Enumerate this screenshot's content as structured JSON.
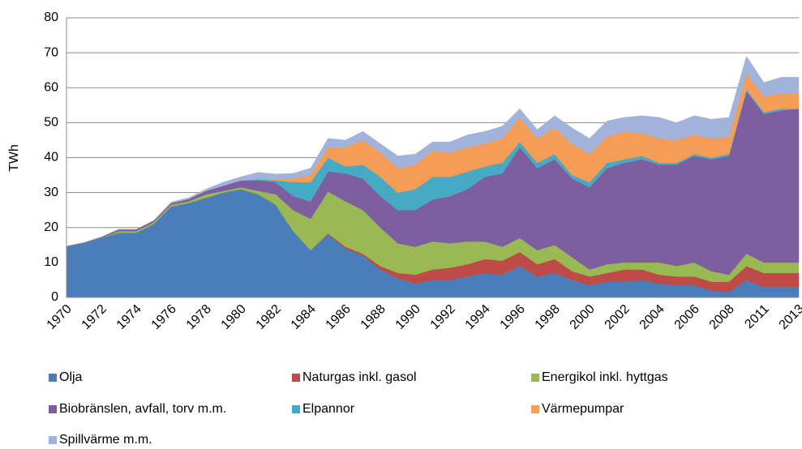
{
  "chart_data": {
    "type": "stacked_area",
    "y_label": "TWh",
    "categories": [
      "1970",
      null,
      "1972",
      null,
      "1974",
      null,
      "1976",
      null,
      "1978",
      null,
      "1980",
      null,
      "1982",
      null,
      "1984",
      null,
      "1986",
      null,
      "1988",
      null,
      "1990",
      null,
      "1992",
      null,
      "1994",
      null,
      "1996",
      null,
      "1998",
      null,
      "2000",
      null,
      "2002",
      null,
      "2004",
      null,
      "2006",
      null,
      "2008",
      null,
      "2011",
      null,
      "2013"
    ],
    "ylim": [
      0,
      80
    ],
    "yticks": [
      0,
      10,
      20,
      30,
      40,
      50,
      60,
      70,
      80
    ],
    "grid": true,
    "legend": "bottom",
    "series": [
      {
        "name": "Olja",
        "color": "#4a7ebb",
        "values": [
          14.5,
          15.5,
          17,
          18.5,
          18.5,
          21,
          26,
          27,
          28.5,
          30,
          31,
          29.5,
          26.5,
          19,
          13.5,
          18,
          14,
          12,
          8,
          5.5,
          4,
          5,
          5,
          6,
          7,
          6.5,
          9,
          6,
          7,
          5,
          3.5,
          4.5,
          4.5,
          5,
          4,
          3.5,
          3.5,
          2,
          1.5,
          5,
          3,
          3,
          3
        ]
      },
      {
        "name": "Naturgas inkl. gasol",
        "color": "#be4b48",
        "values": [
          0,
          0,
          0,
          0,
          0,
          0,
          0,
          0,
          0,
          0,
          0,
          0,
          0,
          0,
          0,
          0.3,
          0.5,
          0.5,
          1,
          1.5,
          2.5,
          3,
          3.5,
          3.5,
          4,
          4,
          4,
          3.5,
          4,
          2.5,
          2.5,
          2.5,
          3.5,
          3,
          2.5,
          2.5,
          2.5,
          2.5,
          3,
          4,
          4,
          4,
          4
        ]
      },
      {
        "name": "Energikol inkl. hyttgas",
        "color": "#98b954",
        "values": [
          0,
          0,
          0,
          0.5,
          0.5,
          0.5,
          0.5,
          0.5,
          1,
          0.5,
          0.5,
          1,
          3,
          6,
          9,
          12,
          13,
          12.5,
          11,
          8.5,
          8,
          8,
          7,
          6.5,
          5,
          4,
          4,
          4,
          4,
          4,
          2,
          2.5,
          2,
          2,
          3.5,
          3,
          4,
          3,
          2,
          3.5,
          3,
          3,
          3
        ]
      },
      {
        "name": "Biobränslen, avfall, torv m.m.",
        "color": "#7d5fa0",
        "values": [
          0.2,
          0.2,
          0.3,
          0.5,
          0.5,
          0.5,
          0.5,
          0.7,
          1,
          1.5,
          2,
          3,
          3.5,
          4,
          5,
          5.7,
          8,
          9,
          9,
          9.5,
          10.5,
          12,
          13.5,
          15,
          18.5,
          21,
          26,
          23.5,
          24.5,
          22.5,
          23.5,
          27.5,
          28.5,
          29.5,
          28,
          29,
          30.5,
          32,
          34,
          46.5,
          42.5,
          43.5,
          44
        ]
      },
      {
        "name": "Elpannor",
        "color": "#46aac5",
        "values": [
          0,
          0,
          0,
          0,
          0,
          0,
          0,
          0,
          0,
          0,
          0,
          0.3,
          0.5,
          4,
          5.5,
          4,
          2,
          4,
          5.5,
          5,
          6,
          6.5,
          5.5,
          5,
          3,
          3,
          1.5,
          1.5,
          1.5,
          1,
          1.5,
          1.5,
          1,
          1,
          0.5,
          0.5,
          0.5,
          0.5,
          0.5,
          0.5,
          0.5,
          0.5,
          0
        ]
      },
      {
        "name": "Värmepumpar",
        "color": "#f59d56",
        "values": [
          0,
          0,
          0,
          0,
          0,
          0,
          0,
          0,
          0,
          0,
          0,
          0,
          0.3,
          1,
          2,
          3,
          5.5,
          7,
          7,
          7,
          7,
          7.5,
          7,
          7,
          6.5,
          7,
          7,
          7,
          7.5,
          9,
          8,
          7.5,
          8,
          6.5,
          7,
          6.5,
          5.5,
          5.5,
          5,
          4.5,
          4.5,
          4.5,
          4.5
        ]
      },
      {
        "name": "Spillvärme m.m.",
        "color": "#a1b3da",
        "values": [
          0,
          0,
          0,
          0,
          0,
          0,
          0.3,
          0.3,
          0.5,
          1,
          1,
          2,
          1.5,
          1.5,
          2,
          2.5,
          2,
          2.5,
          2.5,
          3.5,
          3,
          2.5,
          3,
          3.5,
          3.5,
          3.5,
          2.5,
          2.5,
          3.5,
          4.5,
          4.5,
          4.5,
          4,
          5,
          6,
          5,
          5.5,
          5.5,
          5.5,
          5,
          4,
          4.5,
          4.5
        ]
      }
    ]
  }
}
